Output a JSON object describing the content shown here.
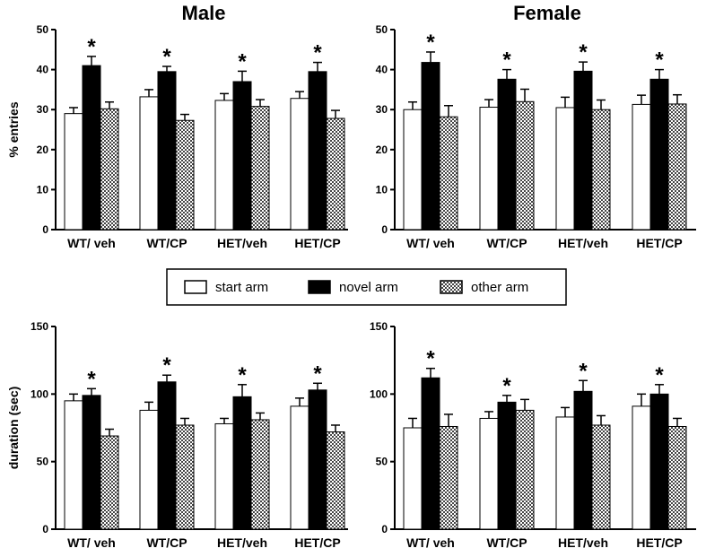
{
  "patterns": {
    "other_arm": "checker"
  },
  "chart_data": [
    {
      "id": "male-entries",
      "type": "bar",
      "title": "Male",
      "ylabel": "% entries",
      "xlabel": "",
      "ylim": [
        0,
        50
      ],
      "yticks": [
        0,
        10,
        20,
        30,
        40,
        50
      ],
      "categories": [
        "WT/ veh",
        "WT/CP",
        "HET/veh",
        "HET/CP"
      ],
      "series": [
        {
          "name": "start arm",
          "values": [
            29.0,
            33.2,
            32.3,
            32.8
          ],
          "errors": [
            1.5,
            1.8,
            1.7,
            1.7
          ]
        },
        {
          "name": "novel arm",
          "values": [
            41.0,
            39.5,
            37.0,
            39.5
          ],
          "errors": [
            2.3,
            1.3,
            2.6,
            2.3
          ]
        },
        {
          "name": "other arm",
          "values": [
            30.2,
            27.3,
            30.8,
            27.8
          ],
          "errors": [
            1.7,
            1.5,
            1.7,
            2.0
          ]
        }
      ],
      "significance": [
        "*",
        "*",
        "*",
        "*"
      ]
    },
    {
      "id": "female-entries",
      "type": "bar",
      "title": "Female",
      "ylabel": "",
      "xlabel": "",
      "ylim": [
        0,
        50
      ],
      "yticks": [
        0,
        10,
        20,
        30,
        40,
        50
      ],
      "categories": [
        "WT/ veh",
        "WT/CP",
        "HET/veh",
        "HET/CP"
      ],
      "series": [
        {
          "name": "start arm",
          "values": [
            30.0,
            30.6,
            30.5,
            31.3
          ],
          "errors": [
            1.9,
            1.9,
            2.6,
            2.3
          ]
        },
        {
          "name": "novel arm",
          "values": [
            41.8,
            37.6,
            39.6,
            37.6
          ],
          "errors": [
            2.6,
            2.4,
            2.3,
            2.4
          ]
        },
        {
          "name": "other arm",
          "values": [
            28.2,
            32.0,
            30.0,
            31.4
          ],
          "errors": [
            2.8,
            3.1,
            2.4,
            2.3
          ]
        }
      ],
      "significance": [
        "*",
        "*",
        "*",
        "*"
      ]
    },
    {
      "id": "male-duration",
      "type": "bar",
      "title": "",
      "ylabel": "duration (sec)",
      "xlabel": "",
      "ylim": [
        0,
        150
      ],
      "yticks": [
        0,
        50,
        100,
        150
      ],
      "categories": [
        "WT/ veh",
        "WT/CP",
        "HET/veh",
        "HET/CP"
      ],
      "series": [
        {
          "name": "start arm",
          "values": [
            95,
            88,
            78,
            91
          ],
          "errors": [
            5,
            6,
            4,
            6
          ]
        },
        {
          "name": "novel arm",
          "values": [
            99,
            109,
            98,
            103
          ],
          "errors": [
            5,
            5,
            9,
            5
          ]
        },
        {
          "name": "other arm",
          "values": [
            69,
            77,
            81,
            72
          ],
          "errors": [
            5,
            5,
            5,
            5
          ]
        }
      ],
      "significance": [
        "*",
        "*",
        "*",
        "*"
      ]
    },
    {
      "id": "female-duration",
      "type": "bar",
      "title": "",
      "ylabel": "",
      "xlabel": "",
      "ylim": [
        0,
        150
      ],
      "yticks": [
        0,
        50,
        100,
        150
      ],
      "categories": [
        "WT/ veh",
        "WT/CP",
        "HET/veh",
        "HET/CP"
      ],
      "series": [
        {
          "name": "start arm",
          "values": [
            75,
            82,
            83,
            91
          ],
          "errors": [
            7,
            5,
            7,
            9
          ]
        },
        {
          "name": "novel arm",
          "values": [
            112,
            94,
            102,
            100
          ],
          "errors": [
            7,
            5,
            8,
            7
          ]
        },
        {
          "name": "other arm",
          "values": [
            76,
            88,
            77,
            76
          ],
          "errors": [
            9,
            8,
            7,
            6
          ]
        }
      ],
      "significance": [
        "*",
        "*",
        "*",
        "*"
      ]
    }
  ],
  "legend": {
    "placement": "center",
    "items": [
      {
        "label": "start arm",
        "series": "start arm"
      },
      {
        "label": "novel arm",
        "series": "novel arm"
      },
      {
        "label": "other arm",
        "series": "other arm"
      }
    ]
  }
}
